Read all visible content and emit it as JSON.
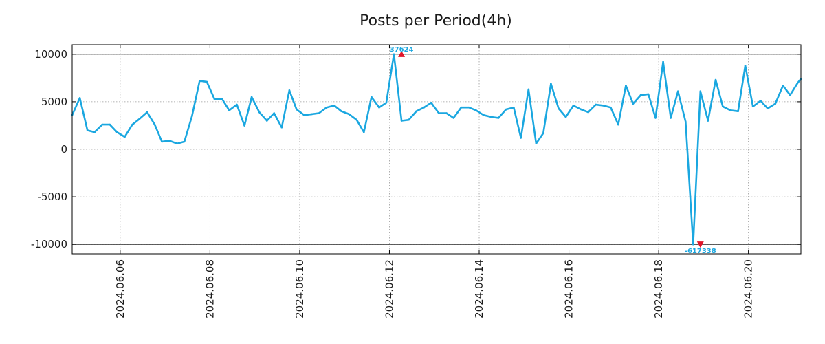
{
  "chart_data": {
    "type": "line",
    "title": "Posts per Period(4h)",
    "xlabel": "",
    "ylabel": "",
    "xlim": [
      4.93,
      21.17
    ],
    "ylim": [
      -11000,
      11000
    ],
    "y_ticks": [
      10000,
      5000,
      0,
      -5000,
      -10000
    ],
    "y_tick_labels": [
      "10000",
      "5000",
      "0",
      "-5000",
      "-10000"
    ],
    "x_ticks": [
      6,
      8,
      10,
      12,
      14,
      16,
      18,
      20
    ],
    "x_tick_labels": [
      "2024.06.06",
      "2024.06.08",
      "2024.06.10",
      "2024.06.12",
      "2024.06.14",
      "2024.06.16",
      "2024.06.18",
      "2024.06.20"
    ],
    "grid": true,
    "clip_lines": [
      10000,
      -10000
    ],
    "series": [
      {
        "name": "posts",
        "color": "#1aa7e0",
        "x": [
          4.93,
          5.1,
          5.27,
          5.43,
          5.6,
          5.77,
          5.93,
          6.1,
          6.27,
          6.43,
          6.6,
          6.77,
          6.93,
          7.1,
          7.27,
          7.43,
          7.6,
          7.77,
          7.93,
          8.1,
          8.27,
          8.43,
          8.6,
          8.77,
          8.93,
          9.1,
          9.27,
          9.43,
          9.6,
          9.77,
          9.93,
          10.1,
          10.27,
          10.43,
          10.6,
          10.77,
          10.93,
          11.1,
          11.27,
          11.43,
          11.6,
          11.77,
          11.93,
          12.1,
          12.27,
          12.43,
          12.6,
          12.77,
          12.93,
          13.1,
          13.27,
          13.43,
          13.6,
          13.77,
          13.93,
          14.1,
          14.27,
          14.43,
          14.6,
          14.77,
          14.93,
          15.1,
          15.27,
          15.43,
          15.6,
          15.77,
          15.93,
          16.1,
          16.27,
          16.43,
          16.6,
          16.77,
          16.93,
          17.1,
          17.27,
          17.43,
          17.6,
          17.77,
          17.93,
          18.1,
          18.27,
          18.43,
          18.6,
          18.77,
          18.93,
          19.1,
          19.27,
          19.43,
          19.6,
          19.77,
          19.93,
          20.1,
          20.27,
          20.43,
          20.6,
          20.77,
          20.93,
          21.1,
          21.17
        ],
        "y": [
          3600,
          5400,
          2000,
          1800,
          2600,
          2600,
          1800,
          1300,
          2600,
          3200,
          3900,
          2600,
          800,
          900,
          600,
          800,
          3500,
          7200,
          7100,
          5300,
          5300,
          4100,
          4700,
          2500,
          5500,
          3900,
          3000,
          3800,
          2300,
          6200,
          4200,
          3600,
          3700,
          3800,
          4400,
          4600,
          4000,
          3700,
          3100,
          1800,
          5500,
          4400,
          4900,
          10000,
          3000,
          3100,
          4000,
          4400,
          4900,
          3800,
          3800,
          3300,
          4400,
          4400,
          4100,
          3600,
          3400,
          3300,
          4200,
          4400,
          1200,
          6300,
          600,
          1700,
          6900,
          4300,
          3400,
          4600,
          4200,
          3900,
          4700,
          4600,
          4400,
          2600,
          6700,
          4800,
          5700,
          5800,
          3300,
          9200,
          3300,
          6100,
          2900,
          -10000,
          6100,
          3000,
          7300,
          4500,
          4100,
          4000,
          8800,
          4500,
          5100,
          4300,
          4800,
          6700,
          5700,
          7000,
          7400
        ]
      }
    ],
    "annotations": [
      {
        "label": "37624",
        "x": 12.27,
        "y": 10000,
        "marker": "up-triangle",
        "marker_color": "#e0142a"
      },
      {
        "label": "-617338",
        "x": 18.93,
        "y": -10000,
        "marker": "down-triangle",
        "marker_color": "#e0142a"
      }
    ]
  }
}
